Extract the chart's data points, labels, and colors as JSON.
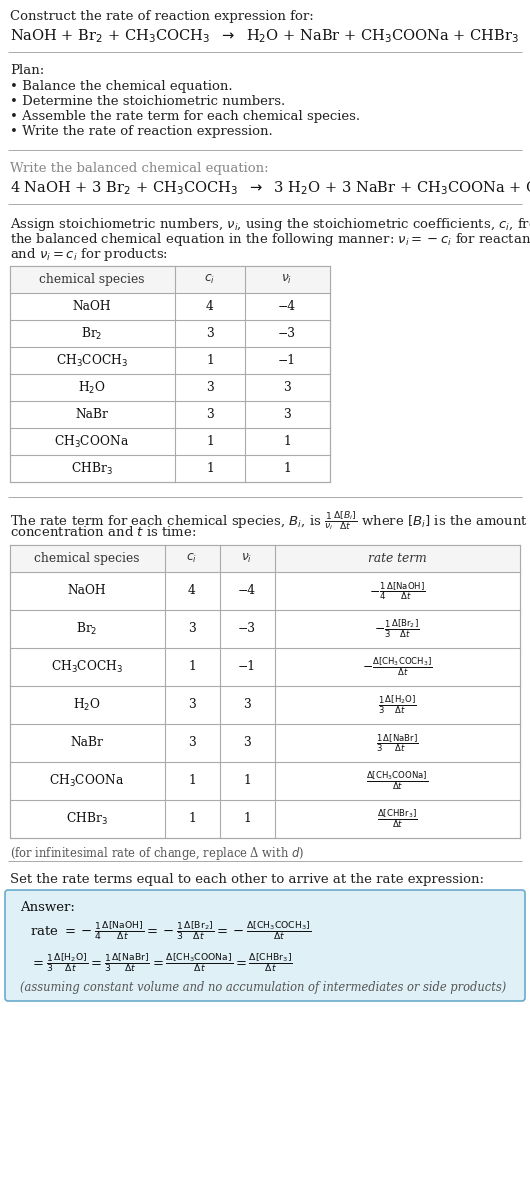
{
  "bg_color": "#ffffff",
  "title_line1": "Construct the rate of reaction expression for:",
  "plan_header": "Plan:",
  "plan_items": [
    "• Balance the chemical equation.",
    "• Determine the stoichiometric numbers.",
    "• Assemble the rate term for each chemical species.",
    "• Write the rate of reaction expression."
  ],
  "balanced_header": "Write the balanced chemical equation:",
  "stoich_intro_lines": [
    "Assign stoichiometric numbers, $\\nu_i$, using the stoichiometric coefficients, $c_i$, from",
    "the balanced chemical equation in the following manner: $\\nu_i = -c_i$ for reactants",
    "and $\\nu_i = c_i$ for products:"
  ],
  "table1_headers": [
    "chemical species",
    "$c_i$",
    "$\\nu_i$"
  ],
  "table1_rows": [
    [
      "NaOH",
      "4",
      "−4"
    ],
    [
      "Br$_2$",
      "3",
      "−3"
    ],
    [
      "CH$_3$COCH$_3$",
      "1",
      "−1"
    ],
    [
      "H$_2$O",
      "3",
      "3"
    ],
    [
      "NaBr",
      "3",
      "3"
    ],
    [
      "CH$_3$COONa",
      "1",
      "1"
    ],
    [
      "CHBr$_3$",
      "1",
      "1"
    ]
  ],
  "rate_intro_lines": [
    "The rate term for each chemical species, $B_i$, is $\\frac{1}{\\nu_i}\\frac{\\Delta [B_i]}{\\Delta t}$ where $[B_i]$ is the amount",
    "concentration and $t$ is time:"
  ],
  "table2_headers": [
    "chemical species",
    "$c_i$",
    "$\\nu_i$",
    "rate term"
  ],
  "table2_rows": [
    [
      "NaOH",
      "4",
      "−4",
      "$-\\frac{1}{4}\\frac{\\Delta[\\mathrm{NaOH}]}{\\Delta t}$"
    ],
    [
      "Br$_2$",
      "3",
      "−3",
      "$-\\frac{1}{3}\\frac{\\Delta[\\mathrm{Br_2}]}{\\Delta t}$"
    ],
    [
      "CH$_3$COCH$_3$",
      "1",
      "−1",
      "$-\\frac{\\Delta[\\mathrm{CH_3COCH_3}]}{\\Delta t}$"
    ],
    [
      "H$_2$O",
      "3",
      "3",
      "$\\frac{1}{3}\\frac{\\Delta[\\mathrm{H_2O}]}{\\Delta t}$"
    ],
    [
      "NaBr",
      "3",
      "3",
      "$\\frac{1}{3}\\frac{\\Delta[\\mathrm{NaBr}]}{\\Delta t}$"
    ],
    [
      "CH$_3$COONa",
      "1",
      "1",
      "$\\frac{\\Delta[\\mathrm{CH_3COONa}]}{\\Delta t}$"
    ],
    [
      "CHBr$_3$",
      "1",
      "1",
      "$\\frac{\\Delta[\\mathrm{CHBr_3}]}{\\Delta t}$"
    ]
  ],
  "infinitesimal_note": "(for infinitesimal rate of change, replace Δ with $d$)",
  "rate_expr_header": "Set the rate terms equal to each other to arrive at the rate expression:",
  "answer_box_color": "#dff0f7",
  "answer_border_color": "#6aabcc",
  "answer_label": "Answer:",
  "assuming_note": "(assuming constant volume and no accumulation of intermediates or side products)",
  "hline_color": "#aaaaaa",
  "table_border_color": "#aaaaaa",
  "table_header_bg": "#f5f5f5"
}
